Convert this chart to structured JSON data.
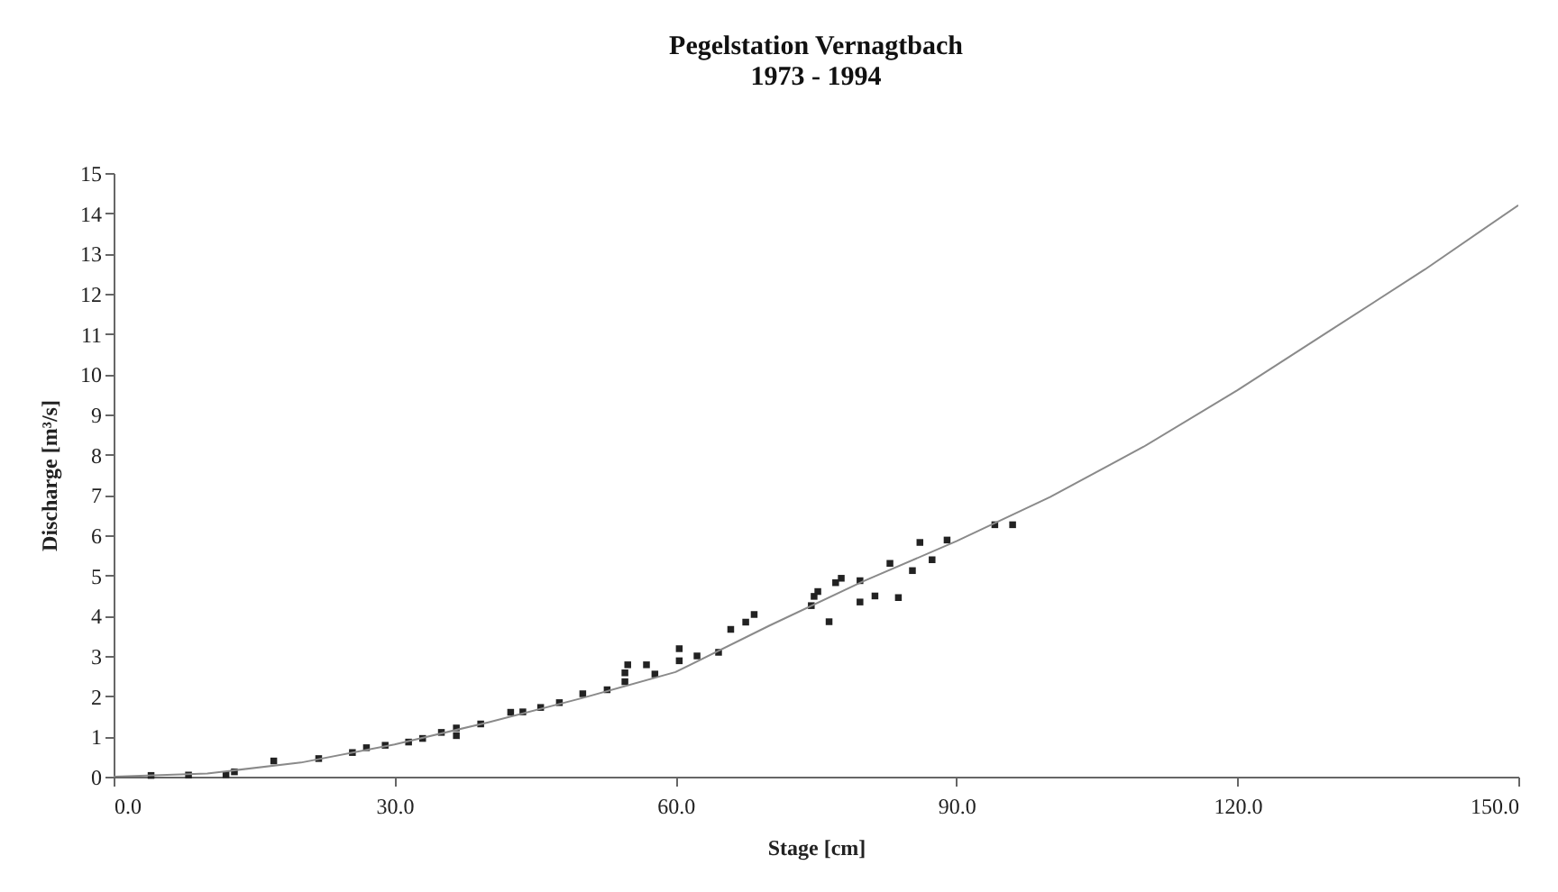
{
  "chart_data": {
    "type": "scatter",
    "title": "Pegelstation Vernagtbach",
    "subtitle": "1973 - 1994",
    "xlabel": "Stage [cm]",
    "ylabel": "Discharge [m³/s]",
    "xlim": [
      0,
      150
    ],
    "xticks": [
      {
        "value": 0,
        "label": "0.0"
      },
      {
        "value": 30,
        "label": "30.0"
      },
      {
        "value": 60,
        "label": "60.0"
      },
      {
        "value": 90,
        "label": "90.0"
      },
      {
        "value": 120,
        "label": "120.0"
      },
      {
        "value": 150,
        "label": "150.0"
      }
    ],
    "ylim": [
      0,
      15
    ],
    "yticks": [
      0,
      1,
      2,
      3,
      4,
      5,
      6,
      7,
      8,
      9,
      10,
      11,
      12,
      13,
      14,
      15
    ],
    "grid": false,
    "series": [
      {
        "marker": "square",
        "color": "#222222",
        "x": [
          4,
          8,
          12,
          12.9,
          17.1,
          21.9,
          25.5,
          27,
          29,
          31.5,
          33,
          35,
          36.6,
          36.6,
          39.2,
          42.4,
          43.7,
          45.6,
          47.6,
          50.1,
          52.7,
          54.6,
          54.6,
          54.9,
          56.9,
          57.8,
          60.4,
          60.4,
          62.3,
          64.6,
          65.9,
          67.5,
          68.4,
          74.5,
          74.8,
          75.2,
          76.4,
          77.1,
          77.7,
          79.7,
          79.7,
          81.3,
          82.9,
          83.8,
          85.3,
          86.1,
          87.4,
          89.0,
          94.1,
          96.0
        ],
        "values": [
          0.03,
          0.04,
          0.05,
          0.12,
          0.39,
          0.45,
          0.6,
          0.72,
          0.78,
          0.86,
          0.95,
          1.1,
          1.21,
          1.02,
          1.31,
          1.6,
          1.61,
          1.72,
          1.84,
          2.06,
          2.16,
          2.36,
          2.58,
          2.78,
          2.78,
          2.55,
          2.88,
          3.18,
          3.0,
          3.09,
          3.66,
          3.84,
          4.03,
          4.25,
          4.48,
          4.6,
          3.85,
          4.82,
          4.93,
          4.87,
          4.34,
          4.49,
          5.3,
          4.45,
          5.12,
          5.82,
          5.39,
          5.88,
          6.26,
          6.26
        ]
      },
      {
        "type": "line",
        "marker": "none",
        "color": "#8a8a8a",
        "x": [
          0,
          10,
          20,
          30,
          40,
          50,
          60,
          70,
          80,
          90,
          100,
          110,
          120,
          130,
          140,
          150
        ],
        "values": [
          0,
          0.08,
          0.35,
          0.8,
          1.35,
          1.95,
          2.6,
          3.75,
          4.85,
          5.85,
          6.95,
          8.2,
          9.6,
          11.1,
          12.6,
          14.2
        ]
      }
    ]
  }
}
